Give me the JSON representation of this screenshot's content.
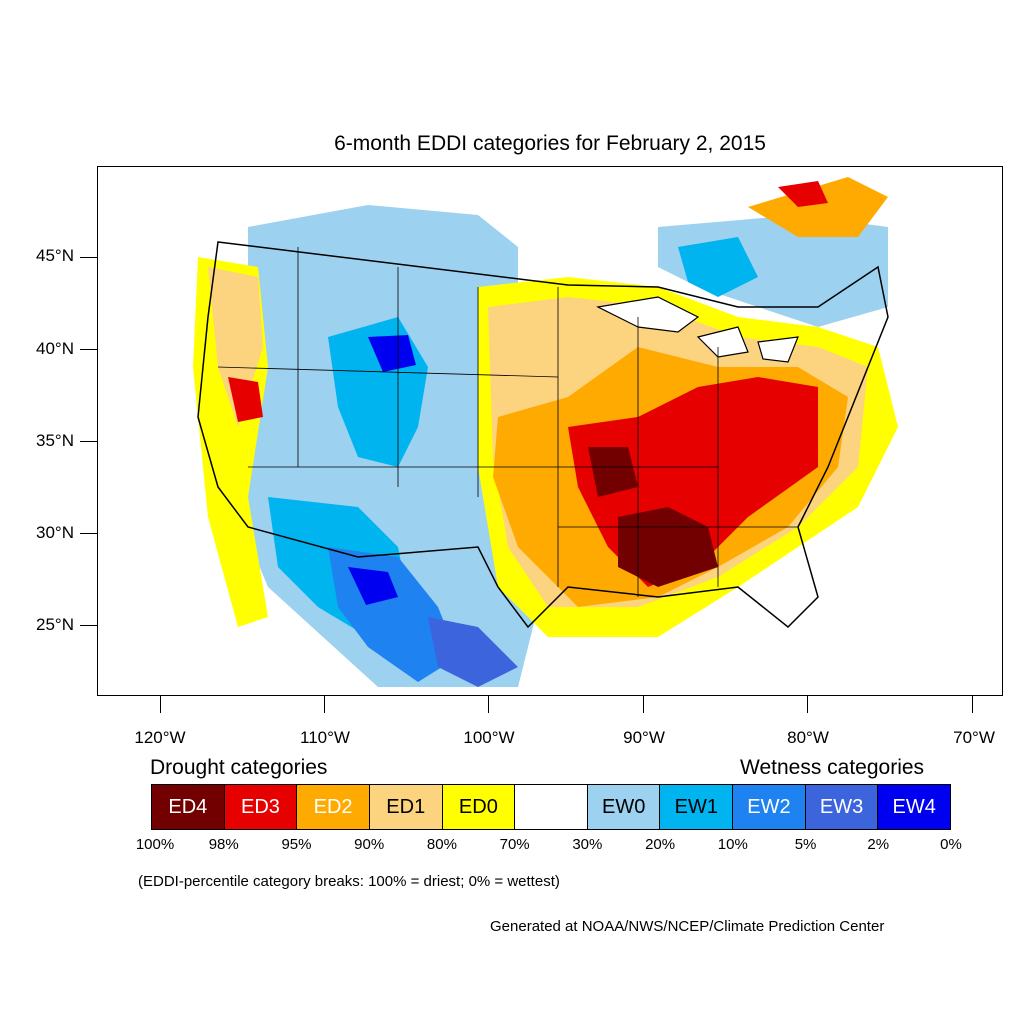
{
  "title": "6-month EDDI categories for February 2, 2015",
  "axes": {
    "lat_labels": [
      "45°N",
      "40°N",
      "35°N",
      "30°N",
      "25°N"
    ],
    "lon_labels": [
      "120°W",
      "110°W",
      "100°W",
      "90°W",
      "80°W",
      "70°W"
    ]
  },
  "legend": {
    "drought_heading": "Drought categories",
    "wetness_heading": "Wetness categories",
    "categories": [
      {
        "label": "ED4",
        "color": "#730000",
        "text_color": "#ffffff"
      },
      {
        "label": "ED3",
        "color": "#e60000",
        "text_color": "#ffffff"
      },
      {
        "label": "ED2",
        "color": "#ffaa00",
        "text_color": "#ffffff"
      },
      {
        "label": "ED1",
        "color": "#fcd37f",
        "text_color": "#000000"
      },
      {
        "label": "ED0",
        "color": "#ffff00",
        "text_color": "#000000"
      },
      {
        "label": "",
        "color": "#ffffff",
        "text_color": "#000000"
      },
      {
        "label": "EW0",
        "color": "#9cd1f0",
        "text_color": "#000000"
      },
      {
        "label": "EW1",
        "color": "#00b4f0",
        "text_color": "#000000"
      },
      {
        "label": "EW2",
        "color": "#1e82f0",
        "text_color": "#ffffff"
      },
      {
        "label": "EW3",
        "color": "#3c64dc",
        "text_color": "#ffffff"
      },
      {
        "label": "EW4",
        "color": "#0000f0",
        "text_color": "#ffffff"
      }
    ],
    "breaks": [
      "100%",
      "98%",
      "95%",
      "90%",
      "80%",
      "70%",
      "30%",
      "20%",
      "10%",
      "5%",
      "2%",
      "0%"
    ]
  },
  "note": "(EDDI-percentile category breaks: 100% = driest; 0% = wettest)",
  "credit": "Generated at NOAA/NWS/NCEP/Climate Prediction Center"
}
